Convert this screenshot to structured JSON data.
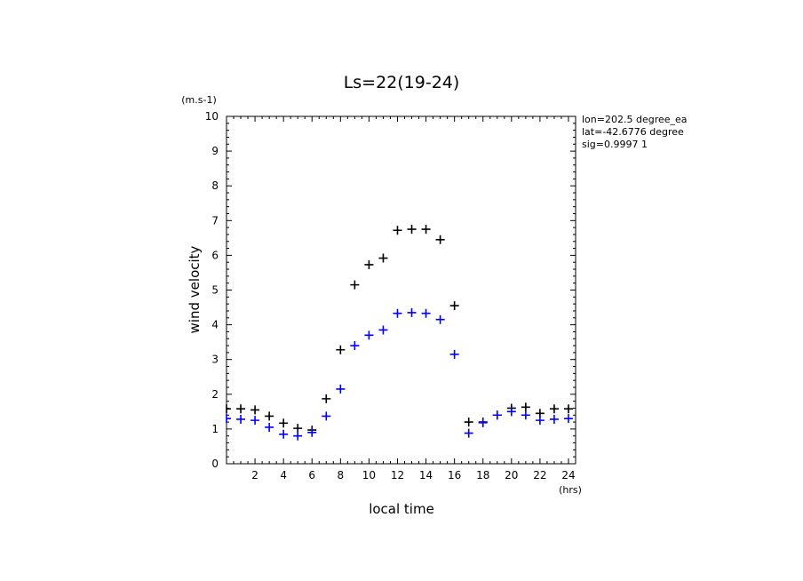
{
  "chart_data": {
    "type": "scatter",
    "title": "Ls=22(19-24)",
    "xlabel": "local time",
    "ylabel": "wind velocity",
    "x_unit": "(hrs)",
    "y_unit": "(m.s-1)",
    "xlim": [
      0,
      24.5
    ],
    "ylim": [
      0,
      10
    ],
    "x_ticks": [
      2,
      4,
      6,
      8,
      10,
      12,
      14,
      16,
      18,
      20,
      22,
      24
    ],
    "y_ticks": [
      0,
      1,
      2,
      3,
      4,
      5,
      6,
      7,
      8,
      9,
      10
    ],
    "annotations": [
      "lon=202.5 degree_ea",
      "lat=-42.6776 degree",
      "sig=0.9997 1"
    ],
    "marker": "+",
    "series": [
      {
        "color": "#000000",
        "x": [
          0,
          1,
          2,
          3,
          4,
          5,
          6,
          7,
          8,
          9,
          10,
          11,
          12,
          13,
          14,
          15,
          16,
          17,
          18,
          19,
          20,
          21,
          22,
          23,
          24
        ],
        "values": [
          1.58,
          1.58,
          1.55,
          1.37,
          1.17,
          1.02,
          0.97,
          1.87,
          3.28,
          5.15,
          5.73,
          5.92,
          6.72,
          6.75,
          6.75,
          6.45,
          4.55,
          1.2,
          1.2,
          1.4,
          1.6,
          1.63,
          1.45,
          1.58,
          1.58
        ]
      },
      {
        "color": "#0000ff",
        "x": [
          0,
          1,
          2,
          3,
          4,
          5,
          6,
          7,
          8,
          9,
          10,
          11,
          12,
          13,
          14,
          15,
          16,
          17,
          18,
          19,
          20,
          21,
          22,
          23,
          24
        ],
        "values": [
          1.3,
          1.28,
          1.25,
          1.05,
          0.85,
          0.8,
          0.9,
          1.37,
          2.15,
          3.4,
          3.7,
          3.85,
          4.33,
          4.35,
          4.33,
          4.15,
          3.15,
          0.88,
          1.18,
          1.4,
          1.5,
          1.4,
          1.25,
          1.28,
          1.3
        ]
      }
    ]
  }
}
